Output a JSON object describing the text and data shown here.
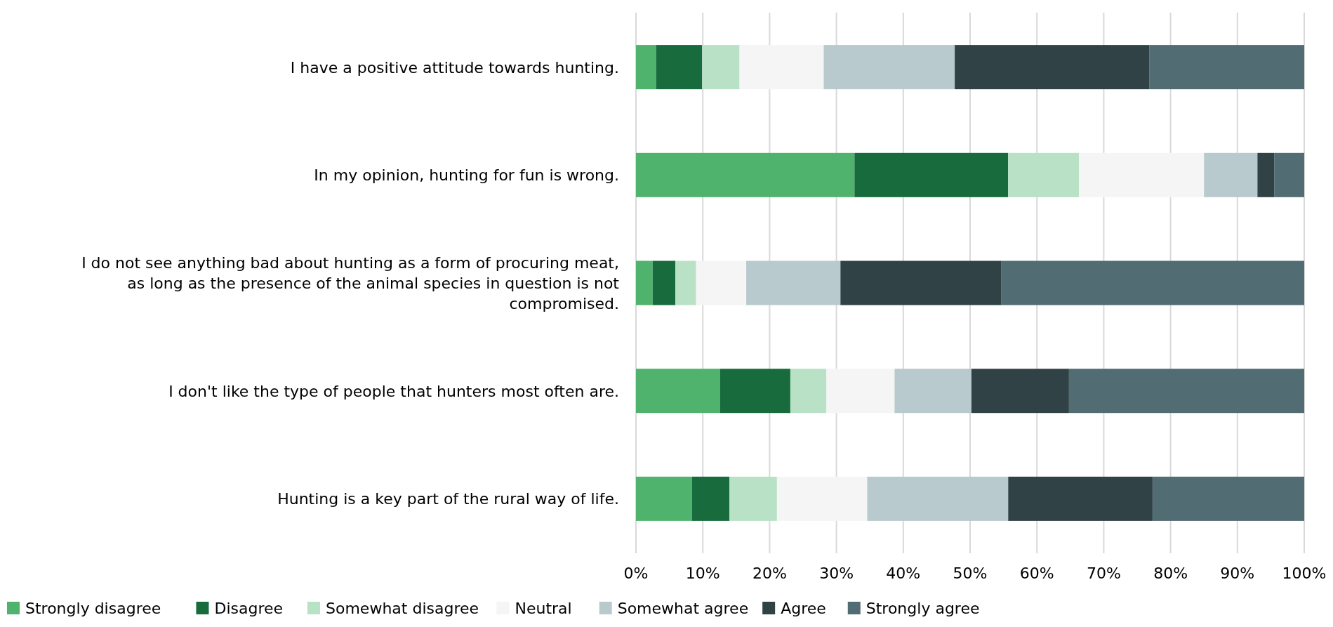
{
  "chart_data": {
    "type": "bar",
    "orientation": "horizontal",
    "stacked": true,
    "grid": "x",
    "legend": "bottom",
    "categories": [
      "I have a positive attitude towards hunting.",
      "In my opinion, hunting for fun is wrong.",
      "I do not see anything bad about hunting as a form of procuring meat, as long as the presence of the animal species in question is not compromised.",
      "I don't like the type of people that hunters most often are.",
      "Hunting is a key part of the rural way of life."
    ],
    "xlim": [
      0,
      100
    ],
    "xticks": [
      {
        "value": 0,
        "label": "0%"
      },
      {
        "value": 10,
        "label": "10%"
      },
      {
        "value": 20,
        "label": "20%"
      },
      {
        "value": 30,
        "label": "30%"
      },
      {
        "value": 40,
        "label": "40%"
      },
      {
        "value": 50,
        "label": "50%"
      },
      {
        "value": 60,
        "label": "60%"
      },
      {
        "value": 70,
        "label": "70%"
      },
      {
        "value": 80,
        "label": "80%"
      },
      {
        "value": 90,
        "label": "90%"
      },
      {
        "value": 100,
        "label": "100%"
      }
    ],
    "series": [
      {
        "name": "Strongly disagree",
        "color": "#4fb36d",
        "values": [
          3.0,
          32.7,
          2.5,
          12.6,
          8.4
        ]
      },
      {
        "name": "Disagree",
        "color": "#186b3c",
        "values": [
          6.9,
          23.0,
          3.4,
          10.5,
          5.6
        ]
      },
      {
        "name": "Somewhat disagree",
        "color": "#b9e1c6",
        "values": [
          5.6,
          10.6,
          3.1,
          5.4,
          7.1
        ]
      },
      {
        "name": "Neutral",
        "color": "#f5f5f5",
        "values": [
          12.6,
          18.7,
          7.5,
          10.2,
          13.5
        ]
      },
      {
        "name": "Somewhat agree",
        "color": "#b8cacd",
        "values": [
          19.6,
          8.0,
          14.1,
          11.5,
          21.1
        ]
      },
      {
        "name": "Agree",
        "color": "#314246",
        "values": [
          29.1,
          2.5,
          24.1,
          14.6,
          21.6
        ]
      },
      {
        "name": "Strongly agree",
        "color": "#516c72",
        "values": [
          23.2,
          4.5,
          45.3,
          35.2,
          22.7
        ]
      }
    ]
  }
}
